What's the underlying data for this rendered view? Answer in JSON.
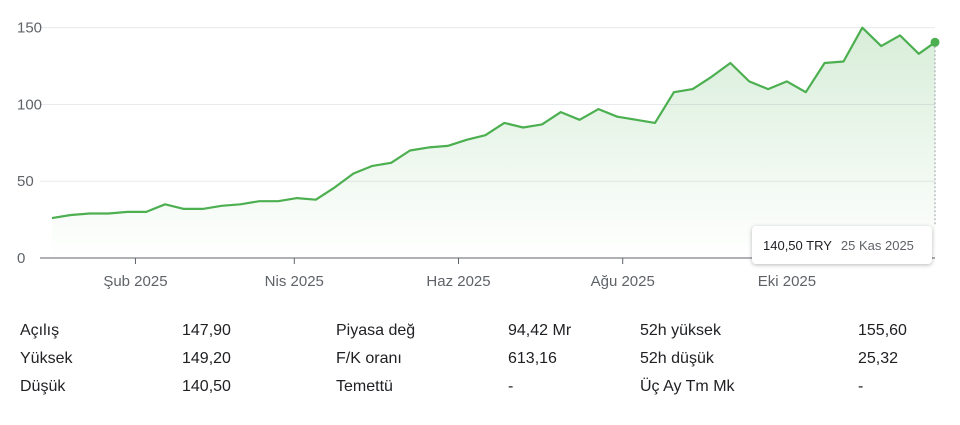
{
  "chart_data": {
    "type": "area",
    "x": [
      "2025-01-01",
      "2025-01-08",
      "2025-01-15",
      "2025-01-22",
      "2025-01-29",
      "2025-02-05",
      "2025-02-12",
      "2025-02-19",
      "2025-02-26",
      "2025-03-05",
      "2025-03-12",
      "2025-03-19",
      "2025-03-26",
      "2025-04-02",
      "2025-04-09",
      "2025-04-16",
      "2025-04-23",
      "2025-04-30",
      "2025-05-07",
      "2025-05-14",
      "2025-05-21",
      "2025-05-28",
      "2025-06-04",
      "2025-06-11",
      "2025-06-18",
      "2025-06-25",
      "2025-07-02",
      "2025-07-09",
      "2025-07-16",
      "2025-07-23",
      "2025-07-30",
      "2025-08-06",
      "2025-08-13",
      "2025-08-20",
      "2025-08-27",
      "2025-09-03",
      "2025-09-10",
      "2025-09-17",
      "2025-09-24",
      "2025-10-01",
      "2025-10-08",
      "2025-10-15",
      "2025-10-22",
      "2025-10-29",
      "2025-11-05",
      "2025-11-12",
      "2025-11-19",
      "2025-11-25"
    ],
    "values": [
      26,
      28,
      29,
      29,
      30,
      30,
      35,
      32,
      32,
      34,
      35,
      37,
      37,
      39,
      38,
      46,
      55,
      60,
      62,
      70,
      72,
      73,
      77,
      80,
      88,
      85,
      87,
      95,
      90,
      97,
      92,
      90,
      88,
      108,
      110,
      118,
      127,
      115,
      110,
      115,
      108,
      127,
      128,
      150,
      138,
      145,
      133,
      140.5
    ],
    "yticks": [
      "0",
      "50",
      "100",
      "150"
    ],
    "ylim": [
      0,
      155
    ],
    "xticks": [
      {
        "date": "2025-02-01",
        "label": "Şub 2025"
      },
      {
        "date": "2025-04-01",
        "label": "Nis 2025"
      },
      {
        "date": "2025-06-01",
        "label": "Haz 2025"
      },
      {
        "date": "2025-08-01",
        "label": "Ağu 2025"
      },
      {
        "date": "2025-10-01",
        "label": "Eki 2025"
      }
    ],
    "grid": true,
    "line_color": "#4caf50"
  },
  "tooltip": {
    "price": "140,50 TRY",
    "date": "25 Kas 2025"
  },
  "stats": [
    {
      "label1": "Açılış",
      "value1": "147,90",
      "label2": "Piyasa değ",
      "value2": "94,42 Mr",
      "label3": "52h yüksek",
      "value3": "155,60"
    },
    {
      "label1": "Yüksek",
      "value1": "149,20",
      "label2": "F/K oranı",
      "value2": "613,16",
      "label3": "52h düşük",
      "value3": "25,32"
    },
    {
      "label1": "Düşük",
      "value1": "140,50",
      "label2": "Temettü",
      "value2": "-",
      "label3": "Üç Ay Tm Mk",
      "value3": "-"
    }
  ]
}
